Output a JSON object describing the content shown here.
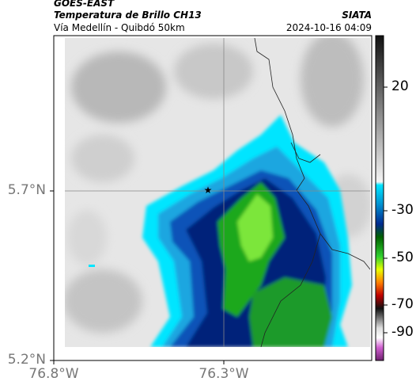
{
  "header": {
    "source": "GOES-EAST",
    "product": "Temperatura de Brillo CH13",
    "route": "Vía Medellín - Quibdó 50km",
    "agency": "SIATA",
    "timestamp": "2024-10-16 04:09"
  },
  "lat_ticks": [
    "5.7°N",
    "5.2°N"
  ],
  "lon_ticks": [
    "76.8°W",
    "76.3°W"
  ],
  "colorbar_ticks": [
    20,
    -30,
    -50,
    -70,
    -90
  ]
}
